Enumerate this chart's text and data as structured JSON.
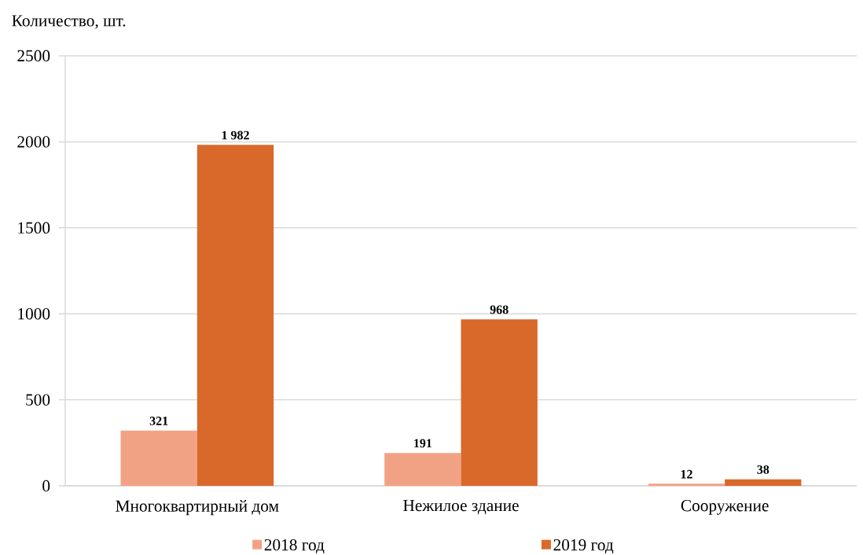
{
  "chart_data": {
    "type": "bar",
    "ylabel": "Количество, шт.",
    "categories": [
      "Многоквартирный дом",
      "Нежилое здание",
      "Сооружение"
    ],
    "series": [
      {
        "name": "2018 год",
        "color": "#f2a284",
        "values": [
          321,
          191,
          12
        ],
        "value_labels": [
          "321",
          "191",
          "12"
        ]
      },
      {
        "name": "2019 год",
        "color": "#d9692a",
        "values": [
          1982,
          968,
          38
        ],
        "value_labels": [
          "1 982",
          "968",
          "38"
        ]
      }
    ],
    "ylim": [
      0,
      2500
    ],
    "yticks": [
      0,
      500,
      1000,
      1500,
      2000,
      2500
    ],
    "grid": "y",
    "legend": "bottom"
  }
}
